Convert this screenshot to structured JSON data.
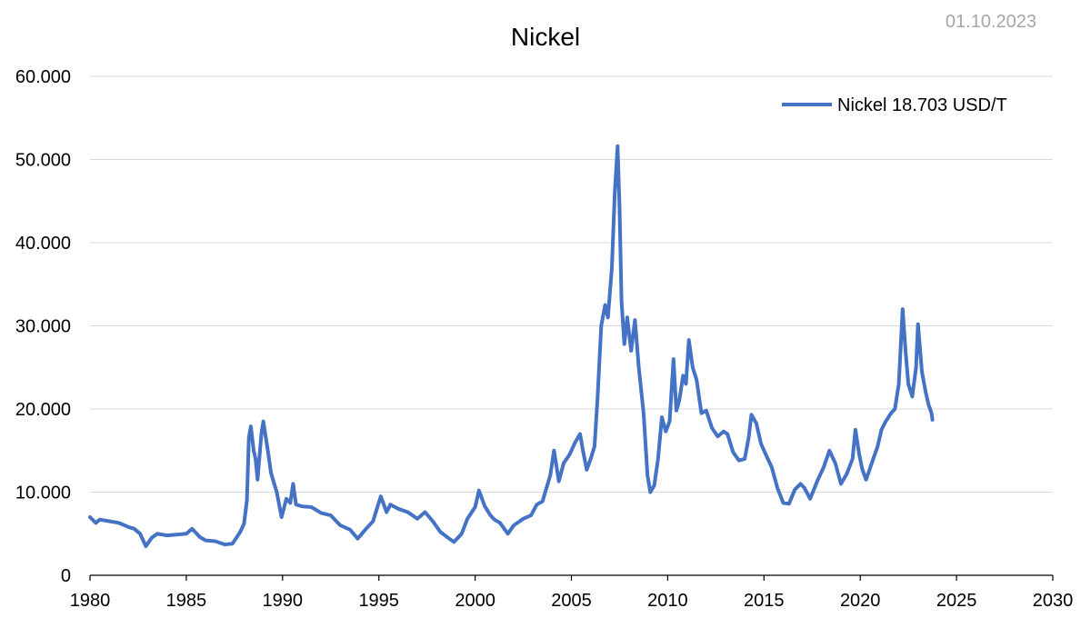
{
  "date_label": "01.10.2023",
  "chart_data": {
    "type": "line",
    "title": "Nickel",
    "xlabel": "",
    "ylabel": "",
    "xlim": [
      1980,
      2030
    ],
    "ylim": [
      0,
      60000
    ],
    "x_ticks": [
      {
        "value": 1980,
        "label": "1980"
      },
      {
        "value": 1985,
        "label": "1985"
      },
      {
        "value": 1990,
        "label": "1990"
      },
      {
        "value": 1995,
        "label": "1995"
      },
      {
        "value": 2000,
        "label": "2000"
      },
      {
        "value": 2005,
        "label": "2005"
      },
      {
        "value": 2010,
        "label": "2010"
      },
      {
        "value": 2015,
        "label": "2015"
      },
      {
        "value": 2020,
        "label": "2020"
      },
      {
        "value": 2025,
        "label": "2025"
      },
      {
        "value": 2030,
        "label": "2030"
      }
    ],
    "y_ticks": [
      {
        "value": 0,
        "label": "0"
      },
      {
        "value": 10000,
        "label": "10.000"
      },
      {
        "value": 20000,
        "label": "20.000"
      },
      {
        "value": 30000,
        "label": "30.000"
      },
      {
        "value": 40000,
        "label": "40.000"
      },
      {
        "value": 50000,
        "label": "50.000"
      },
      {
        "value": 60000,
        "label": "60.000"
      }
    ],
    "grid": true,
    "legend": "top-right",
    "series": [
      {
        "name": "Nickel 18.703 USD/T",
        "color": "#4472c4",
        "points": [
          [
            1980.0,
            7000
          ],
          [
            1980.3,
            6300
          ],
          [
            1980.5,
            6700
          ],
          [
            1981.0,
            6500
          ],
          [
            1981.5,
            6300
          ],
          [
            1982.0,
            5800
          ],
          [
            1982.3,
            5600
          ],
          [
            1982.6,
            5000
          ],
          [
            1982.9,
            3500
          ],
          [
            1983.2,
            4500
          ],
          [
            1983.5,
            5000
          ],
          [
            1984.0,
            4800
          ],
          [
            1984.5,
            4900
          ],
          [
            1985.0,
            5000
          ],
          [
            1985.3,
            5600
          ],
          [
            1985.7,
            4600
          ],
          [
            1986.0,
            4200
          ],
          [
            1986.5,
            4100
          ],
          [
            1987.0,
            3700
          ],
          [
            1987.4,
            3800
          ],
          [
            1987.8,
            5200
          ],
          [
            1988.0,
            6200
          ],
          [
            1988.15,
            9000
          ],
          [
            1988.25,
            16500
          ],
          [
            1988.35,
            17900
          ],
          [
            1988.5,
            15000
          ],
          [
            1988.6,
            14000
          ],
          [
            1988.7,
            11500
          ],
          [
            1988.9,
            17000
          ],
          [
            1989.0,
            18500
          ],
          [
            1989.2,
            15500
          ],
          [
            1989.4,
            12300
          ],
          [
            1989.7,
            10000
          ],
          [
            1989.95,
            7000
          ],
          [
            1990.2,
            9200
          ],
          [
            1990.4,
            8700
          ],
          [
            1990.55,
            11000
          ],
          [
            1990.7,
            8500
          ],
          [
            1991.0,
            8300
          ],
          [
            1991.5,
            8200
          ],
          [
            1992.0,
            7500
          ],
          [
            1992.5,
            7200
          ],
          [
            1993.0,
            6000
          ],
          [
            1993.5,
            5500
          ],
          [
            1993.9,
            4400
          ],
          [
            1994.3,
            5500
          ],
          [
            1994.7,
            6500
          ],
          [
            1995.1,
            9500
          ],
          [
            1995.4,
            7600
          ],
          [
            1995.6,
            8500
          ],
          [
            1996.0,
            8000
          ],
          [
            1996.5,
            7600
          ],
          [
            1997.0,
            6800
          ],
          [
            1997.4,
            7600
          ],
          [
            1997.8,
            6500
          ],
          [
            1998.2,
            5200
          ],
          [
            1998.6,
            4500
          ],
          [
            1998.9,
            4000
          ],
          [
            1999.3,
            5000
          ],
          [
            1999.6,
            6800
          ],
          [
            2000.0,
            8200
          ],
          [
            2000.2,
            10200
          ],
          [
            2000.5,
            8300
          ],
          [
            2000.8,
            7200
          ],
          [
            2001.0,
            6700
          ],
          [
            2001.3,
            6300
          ],
          [
            2001.7,
            5000
          ],
          [
            2002.0,
            6000
          ],
          [
            2002.5,
            6800
          ],
          [
            2002.9,
            7200
          ],
          [
            2003.2,
            8500
          ],
          [
            2003.5,
            8900
          ],
          [
            2003.9,
            12000
          ],
          [
            2004.1,
            15000
          ],
          [
            2004.35,
            11300
          ],
          [
            2004.6,
            13500
          ],
          [
            2004.9,
            14500
          ],
          [
            2005.2,
            16000
          ],
          [
            2005.45,
            17000
          ],
          [
            2005.6,
            15000
          ],
          [
            2005.8,
            12700
          ],
          [
            2006.0,
            14000
          ],
          [
            2006.2,
            15500
          ],
          [
            2006.35,
            21000
          ],
          [
            2006.55,
            30000
          ],
          [
            2006.75,
            32500
          ],
          [
            2006.9,
            31000
          ],
          [
            2007.1,
            37000
          ],
          [
            2007.25,
            46000
          ],
          [
            2007.4,
            51600
          ],
          [
            2007.5,
            44000
          ],
          [
            2007.6,
            33000
          ],
          [
            2007.75,
            27800
          ],
          [
            2007.9,
            31000
          ],
          [
            2008.1,
            27000
          ],
          [
            2008.3,
            30700
          ],
          [
            2008.5,
            25000
          ],
          [
            2008.75,
            19500
          ],
          [
            2008.95,
            12000
          ],
          [
            2009.1,
            10000
          ],
          [
            2009.3,
            10800
          ],
          [
            2009.5,
            14000
          ],
          [
            2009.7,
            19000
          ],
          [
            2009.9,
            17300
          ],
          [
            2010.1,
            18500
          ],
          [
            2010.3,
            26000
          ],
          [
            2010.45,
            19800
          ],
          [
            2010.6,
            21000
          ],
          [
            2010.8,
            24000
          ],
          [
            2010.95,
            23000
          ],
          [
            2011.1,
            28300
          ],
          [
            2011.3,
            25000
          ],
          [
            2011.5,
            23500
          ],
          [
            2011.75,
            19500
          ],
          [
            2012.0,
            19800
          ],
          [
            2012.3,
            17700
          ],
          [
            2012.6,
            16700
          ],
          [
            2012.9,
            17300
          ],
          [
            2013.1,
            17000
          ],
          [
            2013.4,
            14800
          ],
          [
            2013.7,
            13800
          ],
          [
            2014.0,
            14000
          ],
          [
            2014.2,
            16500
          ],
          [
            2014.35,
            19300
          ],
          [
            2014.6,
            18300
          ],
          [
            2014.85,
            15800
          ],
          [
            2015.1,
            14500
          ],
          [
            2015.4,
            13000
          ],
          [
            2015.7,
            10500
          ],
          [
            2016.0,
            8700
          ],
          [
            2016.3,
            8600
          ],
          [
            2016.6,
            10300
          ],
          [
            2016.9,
            11000
          ],
          [
            2017.1,
            10500
          ],
          [
            2017.4,
            9200
          ],
          [
            2017.8,
            11500
          ],
          [
            2018.1,
            13000
          ],
          [
            2018.4,
            15000
          ],
          [
            2018.7,
            13500
          ],
          [
            2019.0,
            11000
          ],
          [
            2019.3,
            12200
          ],
          [
            2019.6,
            14000
          ],
          [
            2019.75,
            17500
          ],
          [
            2019.95,
            14500
          ],
          [
            2020.1,
            12800
          ],
          [
            2020.3,
            11500
          ],
          [
            2020.6,
            13500
          ],
          [
            2020.9,
            15500
          ],
          [
            2021.1,
            17500
          ],
          [
            2021.3,
            18400
          ],
          [
            2021.6,
            19500
          ],
          [
            2021.8,
            20000
          ],
          [
            2022.0,
            23000
          ],
          [
            2022.2,
            32000
          ],
          [
            2022.35,
            27000
          ],
          [
            2022.5,
            23000
          ],
          [
            2022.7,
            21500
          ],
          [
            2022.9,
            25000
          ],
          [
            2023.0,
            30200
          ],
          [
            2023.2,
            24500
          ],
          [
            2023.4,
            22000
          ],
          [
            2023.55,
            20500
          ],
          [
            2023.7,
            19500
          ],
          [
            2023.75,
            18703
          ]
        ]
      }
    ]
  }
}
